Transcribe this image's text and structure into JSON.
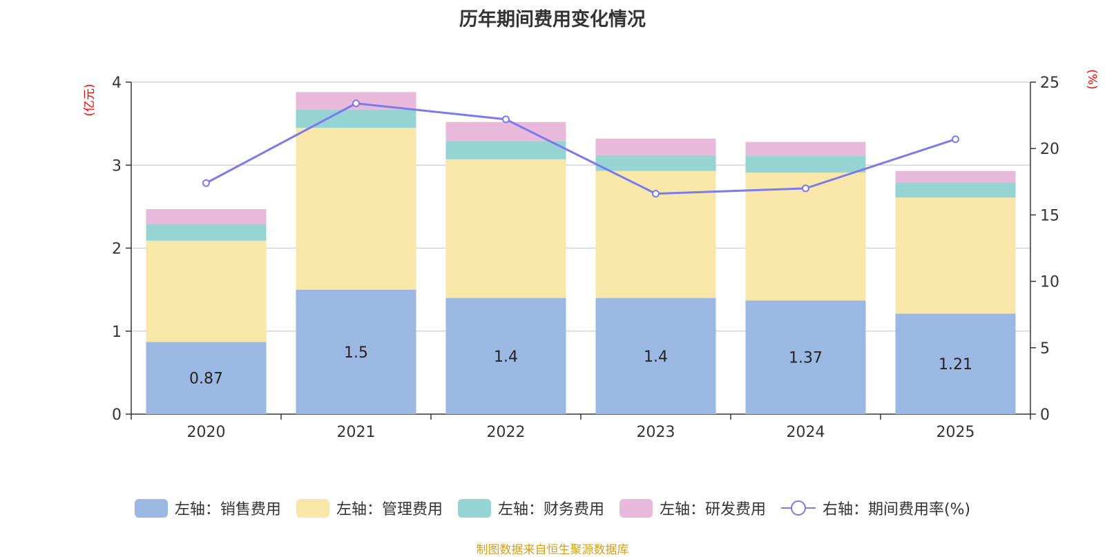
{
  "title": "历年期间费用变化情况",
  "source": "制图数据来自恒生聚源数据库",
  "colors": {
    "sales": "#9ab8e2",
    "admin": "#f8e7a8",
    "finance": "#96d4d4",
    "rd": "#e8b9db",
    "rate": "#7a7aec",
    "grid": "#cccccc",
    "axis": "#333333",
    "unit": "#ff0000"
  },
  "chart_data": {
    "type": "bar",
    "stacked": true,
    "categories": [
      "2020",
      "2021",
      "2022",
      "2023",
      "2024",
      "2025"
    ],
    "left_axis": {
      "unit_label": "(亿元)",
      "ylim": [
        0,
        4
      ],
      "ticks": [
        "0",
        "1",
        "2",
        "3",
        "4"
      ]
    },
    "right_axis": {
      "unit_label": "(%)",
      "ylim": [
        0,
        25
      ],
      "ticks": [
        "0",
        "5",
        "10",
        "15",
        "20",
        "25"
      ]
    },
    "series": [
      {
        "key": "sales",
        "name": "左轴：销售费用",
        "axis": "left",
        "values": [
          0.87,
          1.5,
          1.4,
          1.4,
          1.37,
          1.21
        ],
        "labels": [
          "0.87",
          "1.5",
          "1.4",
          "1.4",
          "1.37",
          "1.21"
        ]
      },
      {
        "key": "admin",
        "name": "左轴：管理费用",
        "axis": "left",
        "values": [
          1.22,
          1.95,
          1.67,
          1.53,
          1.54,
          1.4
        ]
      },
      {
        "key": "finance",
        "name": "左轴：财务费用",
        "axis": "left",
        "values": [
          0.2,
          0.22,
          0.22,
          0.19,
          0.2,
          0.18
        ]
      },
      {
        "key": "rd",
        "name": "左轴：研发费用",
        "axis": "left",
        "values": [
          0.18,
          0.21,
          0.23,
          0.2,
          0.17,
          0.14
        ]
      },
      {
        "key": "rate",
        "name": "右轴：期间费用率(%)",
        "axis": "right",
        "type": "line",
        "values": [
          17.4,
          23.4,
          22.2,
          16.6,
          17.0,
          20.7
        ]
      }
    ],
    "legend_position": "bottom"
  }
}
